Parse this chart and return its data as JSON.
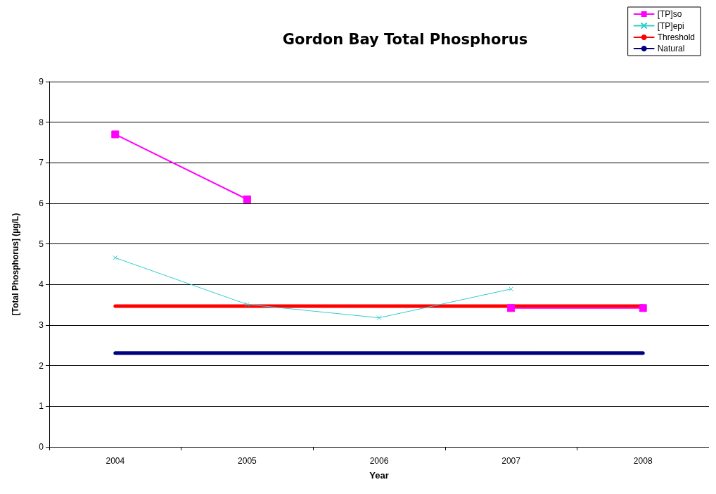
{
  "chart_data": {
    "type": "line",
    "title": "Gordon Bay Total Phosphorus",
    "xlabel": "Year",
    "ylabel": "[Total Phosphorus] (µg/L)",
    "categories": [
      "2004",
      "2005",
      "2006",
      "2007",
      "2008"
    ],
    "series": [
      {
        "name": "[TP]so",
        "color": "#ff00ff",
        "marker": "square",
        "values": [
          7.7,
          6.1,
          null,
          3.42,
          3.42
        ]
      },
      {
        "name": "[TP]epi",
        "color": "#33cccc",
        "marker": "cross",
        "values": [
          4.66,
          3.51,
          3.18,
          3.89,
          null
        ]
      },
      {
        "name": "Threshold",
        "color": "#ff0000",
        "marker": "none",
        "values": [
          3.47,
          3.47,
          3.47,
          3.47,
          3.47
        ]
      },
      {
        "name": "Natural",
        "color": "#000080",
        "marker": "none",
        "values": [
          2.31,
          2.31,
          2.31,
          2.31,
          2.31
        ]
      }
    ],
    "ylim": [
      0,
      9
    ],
    "yticks": [
      0,
      1,
      2,
      3,
      4,
      5,
      6,
      7,
      8,
      9
    ],
    "grid": "y",
    "legend": "top right"
  }
}
